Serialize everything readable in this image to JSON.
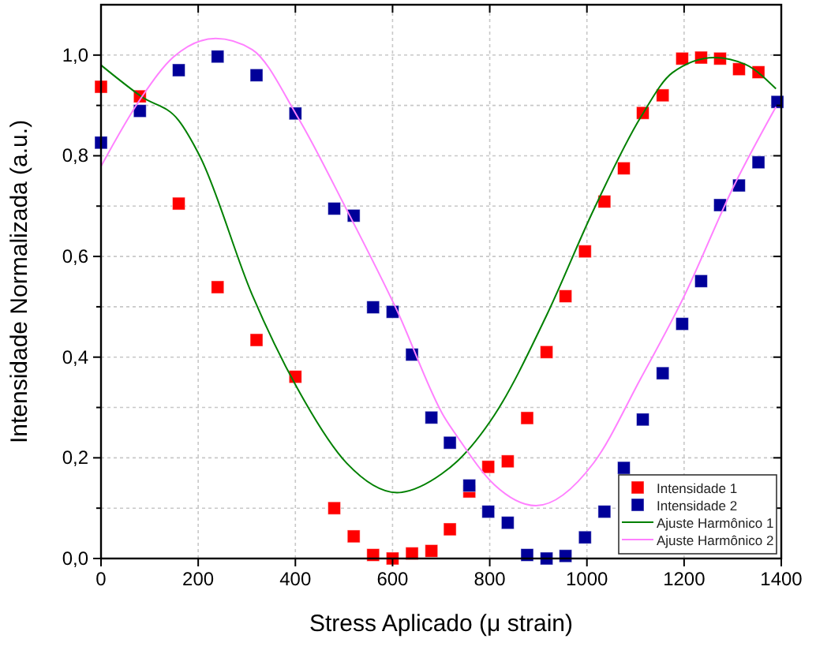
{
  "chart_data": {
    "type": "scatter",
    "xlabel": "Stress Aplicado (μ strain)",
    "ylabel": "Intensidade Normalizada (a.u.)",
    "xlim": [
      0,
      1400
    ],
    "ylim": [
      0,
      1.1
    ],
    "xticks": [
      0,
      200,
      400,
      600,
      800,
      1000,
      1200,
      1400
    ],
    "yticks": [
      {
        "value": 0,
        "label": "0,0"
      },
      {
        "value": 0.1,
        "label": null
      },
      {
        "value": 0.2,
        "label": "0,2"
      },
      {
        "value": 0.3,
        "label": null
      },
      {
        "value": 0.4,
        "label": "0,4"
      },
      {
        "value": 0.5,
        "label": null
      },
      {
        "value": 0.6,
        "label": "0,6"
      },
      {
        "value": 0.7,
        "label": null
      },
      {
        "value": 0.8,
        "label": "0,8"
      },
      {
        "value": 0.9,
        "label": null
      },
      {
        "value": 1.0,
        "label": "1,0"
      }
    ],
    "grid": true,
    "legend": "bottom right",
    "marker": "square",
    "series": [
      {
        "name": "Intensidade 1",
        "color": "#ff0000",
        "x": [
          0,
          80,
          160,
          240,
          320,
          400,
          480,
          520,
          560,
          600,
          640,
          680,
          718,
          758,
          797,
          837,
          877,
          917,
          956,
          996,
          1036,
          1076,
          1115,
          1156,
          1196,
          1235,
          1274,
          1313,
          1353
        ],
        "values": [
          0.937,
          0.918,
          0.705,
          0.539,
          0.434,
          0.361,
          0.1,
          0.044,
          0.007,
          0,
          0.01,
          0.015,
          0.058,
          0.133,
          0.182,
          0.193,
          0.279,
          0.41,
          0.521,
          0.61,
          0.709,
          0.775,
          0.885,
          0.92,
          0.993,
          0.995,
          0.993,
          0.972,
          0.966
        ]
      },
      {
        "name": "Intensidade 2",
        "color": "#000099",
        "x": [
          0,
          80,
          160,
          240,
          320,
          400,
          480,
          520,
          560,
          600,
          640,
          680,
          718,
          758,
          797,
          837,
          877,
          917,
          956,
          996,
          1036,
          1076,
          1115,
          1156,
          1196,
          1235,
          1274,
          1313,
          1353,
          1392
        ],
        "values": [
          0.826,
          0.889,
          0.97,
          0.997,
          0.96,
          0.884,
          0.695,
          0.681,
          0.499,
          0.49,
          0.405,
          0.28,
          0.23,
          0.145,
          0.093,
          0.071,
          0.007,
          0,
          0.005,
          0.042,
          0.093,
          0.18,
          0.276,
          0.368,
          0.466,
          0.551,
          0.702,
          0.741,
          0.787,
          0.907
        ]
      },
      {
        "name": "Ajuste Harmônico 1",
        "type": "line",
        "marker": "none",
        "color": "#008000",
        "x": [
          0,
          84,
          160,
          203,
          311,
          403,
          506,
          609,
          701,
          734,
          809,
          917,
          1014,
          1111,
          1176,
          1262,
          1327,
          1389
        ],
        "values": [
          0.98,
          0.917,
          0.87,
          0.8,
          0.524,
          0.34,
          0.189,
          0.131,
          0.168,
          0.194,
          0.284,
          0.483,
          0.693,
          0.877,
          0.965,
          0.995,
          0.981,
          0.933
        ]
      },
      {
        "name": "Ajuste Harmônico 2",
        "type": "line",
        "marker": "none",
        "color": "#ff80ff",
        "x": [
          0,
          84,
          149,
          236,
          311,
          403,
          506,
          609,
          707,
          734,
          809,
          895,
          1014,
          1111,
          1197,
          1305,
          1389
        ],
        "values": [
          0.779,
          0.917,
          0.996,
          1.033,
          1.011,
          0.88,
          0.692,
          0.493,
          0.28,
          0.241,
          0.147,
          0.105,
          0.19,
          0.358,
          0.515,
          0.745,
          0.897
        ]
      }
    ]
  }
}
